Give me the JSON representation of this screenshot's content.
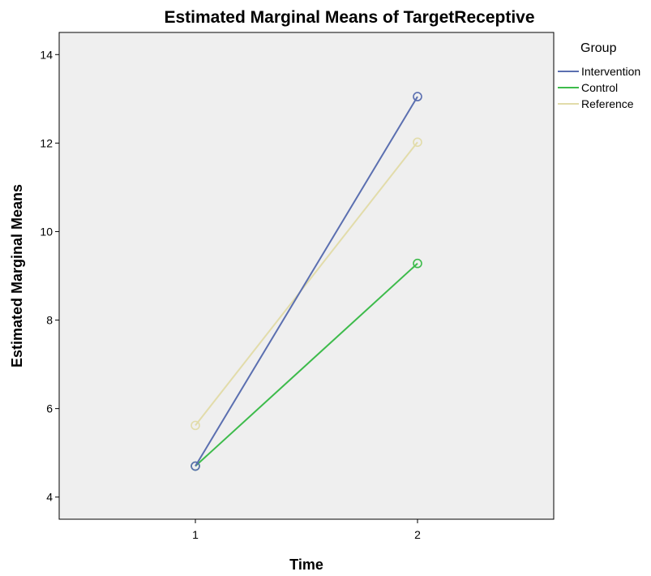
{
  "chart_data": {
    "type": "line",
    "title": "Estimated Marginal Means of TargetReceptive",
    "xlabel": "Time",
    "ylabel": "Estimated Marginal Means",
    "categories": [
      "1",
      "2"
    ],
    "ylim": [
      3.5,
      14.5
    ],
    "yticks": [
      4,
      6,
      8,
      10,
      12,
      14
    ],
    "grid": false,
    "legend": {
      "title": "Group",
      "placement": "right-top"
    },
    "series": [
      {
        "name": "Intervention",
        "color": "#5b6fb0",
        "values": [
          4.7,
          13.05
        ]
      },
      {
        "name": "Control",
        "color": "#3dbb4b",
        "values": [
          4.7,
          9.28
        ]
      },
      {
        "name": "Reference",
        "color": "#e2dcaa",
        "values": [
          5.62,
          12.02
        ]
      }
    ]
  },
  "colors": {
    "plot_background": "#efefef",
    "plot_border": "#000000"
  }
}
